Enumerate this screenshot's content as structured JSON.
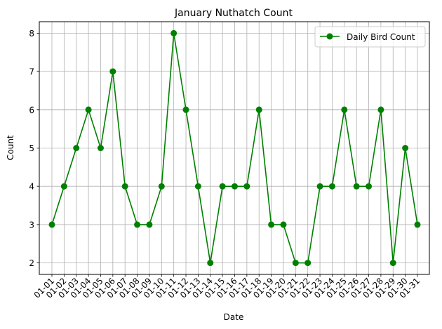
{
  "chart_data": {
    "type": "line",
    "title": "January Nuthatch Count",
    "xlabel": "Date",
    "ylabel": "Count",
    "categories": [
      "01-01",
      "01-02",
      "01-03",
      "01-04",
      "01-05",
      "01-06",
      "01-07",
      "01-08",
      "01-09",
      "01-10",
      "01-11",
      "01-12",
      "01-13",
      "01-14",
      "01-15",
      "01-16",
      "01-17",
      "01-18",
      "01-19",
      "01-20",
      "01-21",
      "01-22",
      "01-23",
      "01-24",
      "01-25",
      "01-26",
      "01-27",
      "01-28",
      "01-29",
      "01-30",
      "01-31"
    ],
    "series": [
      {
        "name": "Daily Bird Count",
        "color": "#008000",
        "marker": "circle",
        "values": [
          3,
          4,
          5,
          6,
          5,
          7,
          4,
          3,
          3,
          4,
          8,
          6,
          4,
          2,
          4,
          4,
          4,
          6,
          3,
          3,
          2,
          2,
          4,
          4,
          6,
          4,
          4,
          6,
          2,
          5,
          3
        ]
      }
    ],
    "yticks": [
      2,
      3,
      4,
      5,
      6,
      7,
      8
    ],
    "ylim": [
      1.7,
      8.3
    ],
    "grid": true,
    "legend": "upper right"
  }
}
